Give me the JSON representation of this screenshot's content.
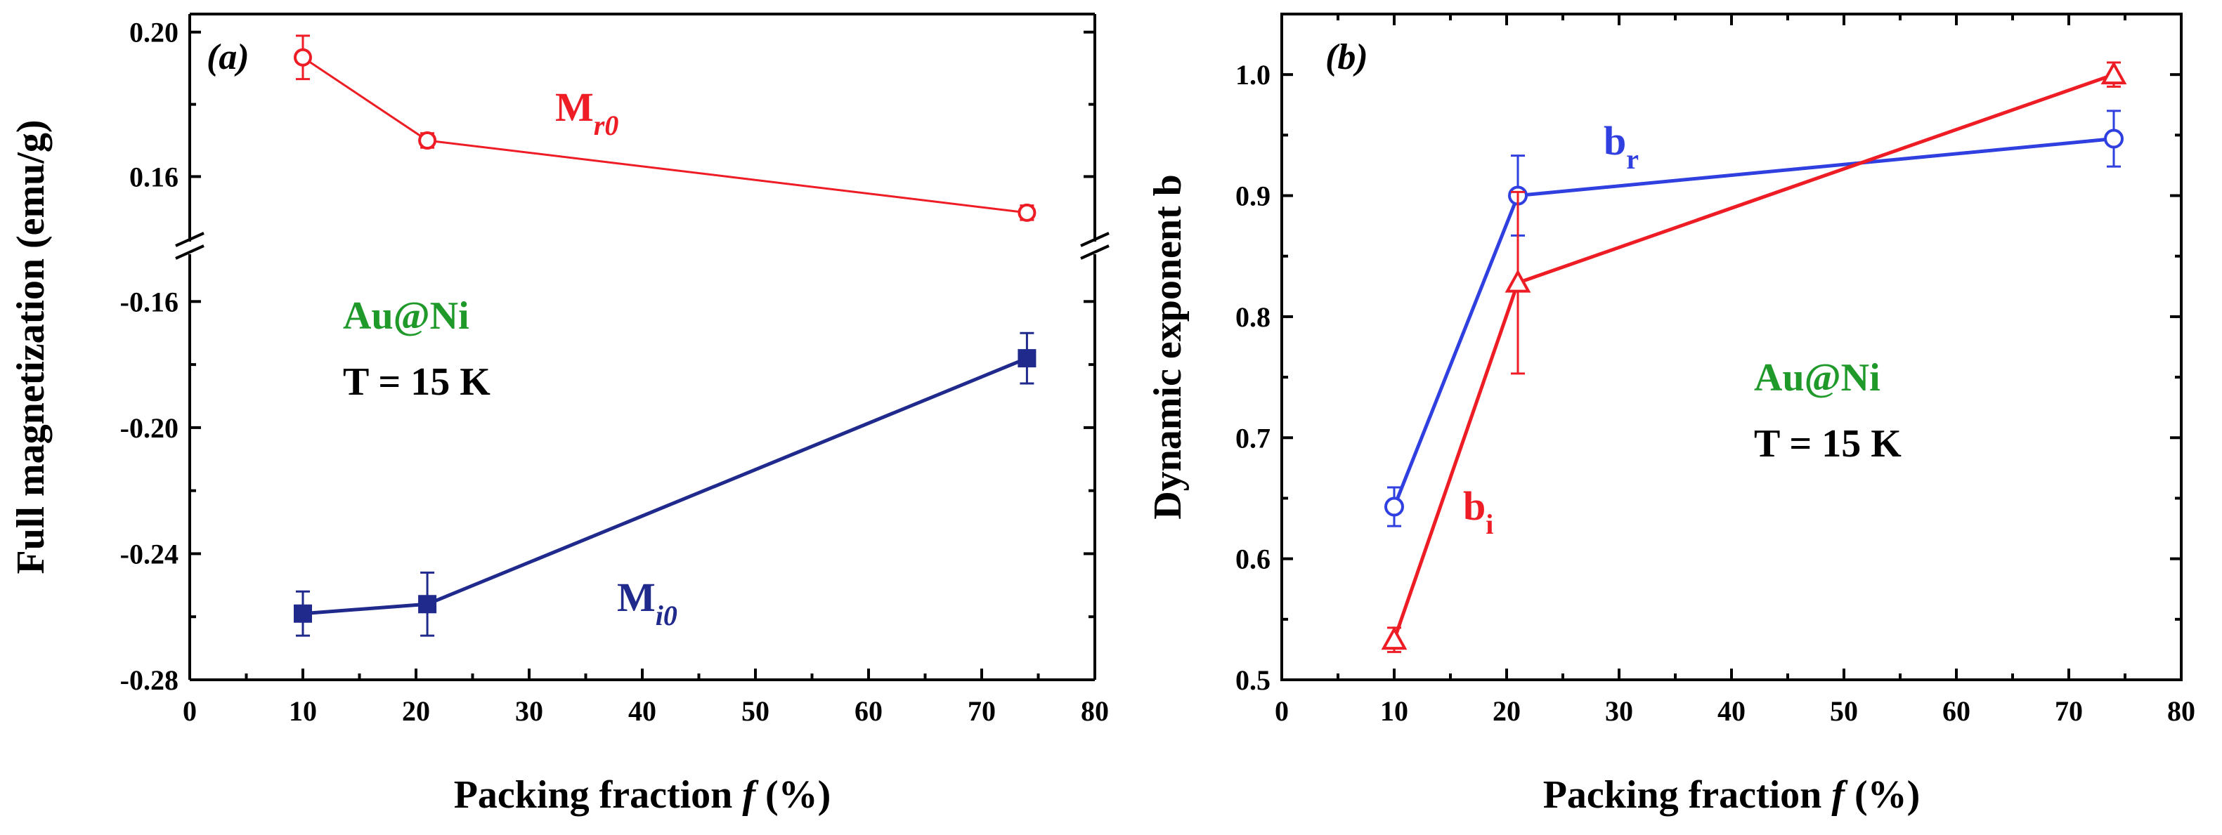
{
  "figure": {
    "panel_a_label": "(a)",
    "panel_b_label": "(b)"
  },
  "colors": {
    "red": "#ee1c24",
    "navy": "#1f2a8c",
    "blue": "#2f3fe0",
    "green": "#1f9a2a",
    "black": "#000000"
  },
  "chart_data": [
    {
      "type": "line",
      "panel": "(a)",
      "title": "",
      "xlabel_prefix": "Packing fraction ",
      "xlabel_var": "f",
      "xlabel_suffix": " (%)",
      "ylabel": "Full magnetization (emu/g)",
      "xlim": [
        0,
        80
      ],
      "x_ticks": [
        "0",
        "10",
        "20",
        "30",
        "40",
        "50",
        "60",
        "70",
        "80"
      ],
      "ylim_top_segment": [
        0.142,
        0.205
      ],
      "ylim_bottom_segment": [
        -0.28,
        -0.145
      ],
      "y_ticks_top": [
        "0.20",
        "0.16"
      ],
      "y_ticks_bottom": [
        "-0.16",
        "-0.20",
        "-0.24",
        "-0.28"
      ],
      "axis_break": true,
      "annotations": {
        "sample": "Au@Ni",
        "temperature": "T = 15 K"
      },
      "series": [
        {
          "name": "M",
          "subscript": "r0",
          "color": "#ee1c24",
          "marker": "open-circle",
          "segment": "top",
          "x": [
            10,
            21,
            74
          ],
          "y": [
            0.193,
            0.17,
            0.15
          ],
          "yerr": [
            0.006,
            0.002,
            0.002
          ]
        },
        {
          "name": "M",
          "subscript": "i0",
          "color": "#1f2a8c",
          "marker": "filled-square",
          "segment": "bottom",
          "x": [
            10,
            21,
            74
          ],
          "y": [
            -0.259,
            -0.256,
            -0.178
          ],
          "yerr": [
            0.007,
            0.01,
            0.008
          ]
        }
      ]
    },
    {
      "type": "line",
      "panel": "(b)",
      "title": "",
      "xlabel_prefix": "Packing fraction ",
      "xlabel_var": "f",
      "xlabel_suffix": " (%)",
      "ylabel": "Dynamic exponent b",
      "xlim": [
        0,
        80
      ],
      "x_ticks": [
        "0",
        "10",
        "20",
        "30",
        "40",
        "50",
        "60",
        "70",
        "80"
      ],
      "ylim": [
        0.5,
        1.05
      ],
      "y_ticks": [
        "0.5",
        "0.6",
        "0.7",
        "0.8",
        "0.9",
        "1.0"
      ],
      "annotations": {
        "sample": "Au@Ni",
        "temperature": "T = 15 K"
      },
      "series": [
        {
          "name": "b",
          "subscript": "r",
          "color": "#2f3fe0",
          "marker": "open-circle",
          "x": [
            10,
            21,
            74
          ],
          "y": [
            0.643,
            0.9,
            0.947
          ],
          "yerr": [
            0.016,
            0.033,
            0.023
          ]
        },
        {
          "name": "b",
          "subscript": "i",
          "color": "#ee1c24",
          "marker": "open-triangle",
          "x": [
            10,
            21,
            74
          ],
          "y": [
            0.533,
            0.828,
            1.0
          ],
          "yerr": [
            0.01,
            0.075,
            0.01
          ]
        }
      ]
    }
  ]
}
